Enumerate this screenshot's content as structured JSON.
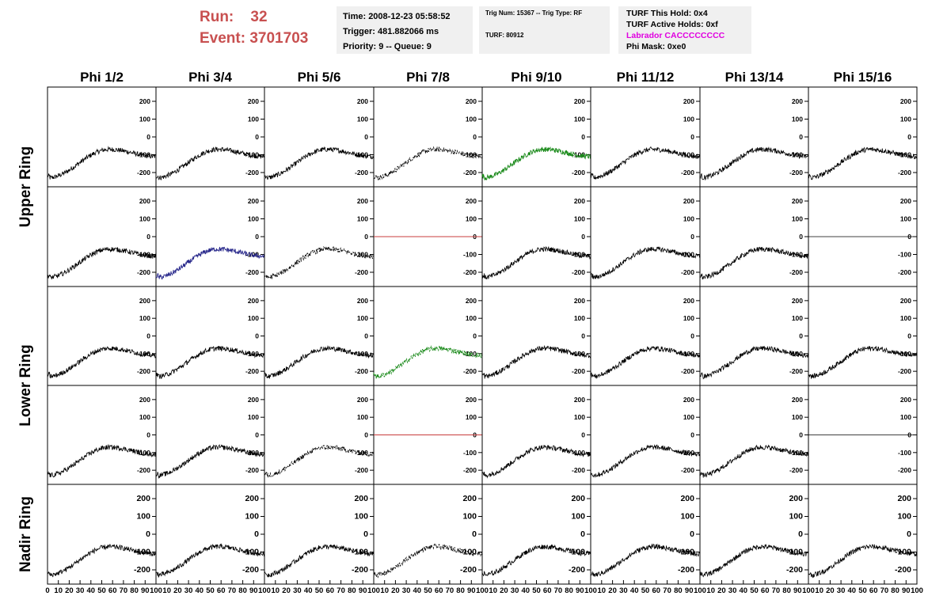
{
  "run": {
    "run_label": "Run:",
    "run_value": "32",
    "event_label": "Event:",
    "event_value": "3701703"
  },
  "info_time": {
    "time": "Time: 2008-12-23 05:58:52",
    "trigger": "Trigger: 481.882066 ms",
    "priority": "Priority: 9 -- Queue: 9"
  },
  "info_trig": {
    "trig": "Trig Num: 15367 -- Trig Type: RF",
    "turf": "TURF: 80912"
  },
  "info_turf": {
    "hold": "TURF This Hold: 0x4",
    "active": "TURF Active Holds: 0xf",
    "labrador": "Labrador CACCCCCCCC",
    "phimask": "Phi Mask: 0xe0"
  },
  "colors": {
    "trace_default": "#000000",
    "trace_green": "#1a8a1a",
    "trace_blue": "#2a2a8c",
    "trace_red": "#c83c3c",
    "panel_bg": "#ffffff",
    "info_bg": "#f0f0f0",
    "run_text": "#c85050",
    "labrador_text": "#e000e0"
  },
  "chart_data": {
    "type": "line",
    "column_titles": [
      "Phi 1/2",
      "Phi 3/4",
      "Phi 5/6",
      "Phi 7/8",
      "Phi 9/10",
      "Phi 11/12",
      "Phi 13/14",
      "Phi 15/16"
    ],
    "row_titles": [
      "Upper Ring",
      "Lower Ring",
      "Nadir Ring"
    ],
    "xlim": [
      0,
      100
    ],
    "ylim": [
      -280,
      280
    ],
    "yticks": [
      200,
      100,
      0,
      -100,
      -200
    ],
    "xticks": [
      0,
      10,
      20,
      30,
      40,
      50,
      60,
      70,
      80,
      90,
      100
    ],
    "waveform_shape": {
      "start": -230,
      "peak_x": 57,
      "peak": -70,
      "end": -110,
      "noise": 14
    },
    "panels": [
      [
        "black",
        "black",
        "black",
        "black-dashed",
        "green",
        "black",
        "black",
        "black"
      ],
      [
        "black",
        "blue",
        "black-dashed",
        "red-flat",
        "black",
        "black",
        "black",
        "black-flat"
      ],
      [
        "black",
        "black",
        "black",
        "green-dashed",
        "black",
        "black",
        "black",
        "black"
      ],
      [
        "black",
        "black",
        "black-dashed",
        "red-flat",
        "black",
        "black",
        "black",
        "black-flat"
      ],
      [
        "black",
        "black",
        "black",
        "black-dashed",
        "black",
        "black",
        "black",
        "black"
      ]
    ]
  }
}
